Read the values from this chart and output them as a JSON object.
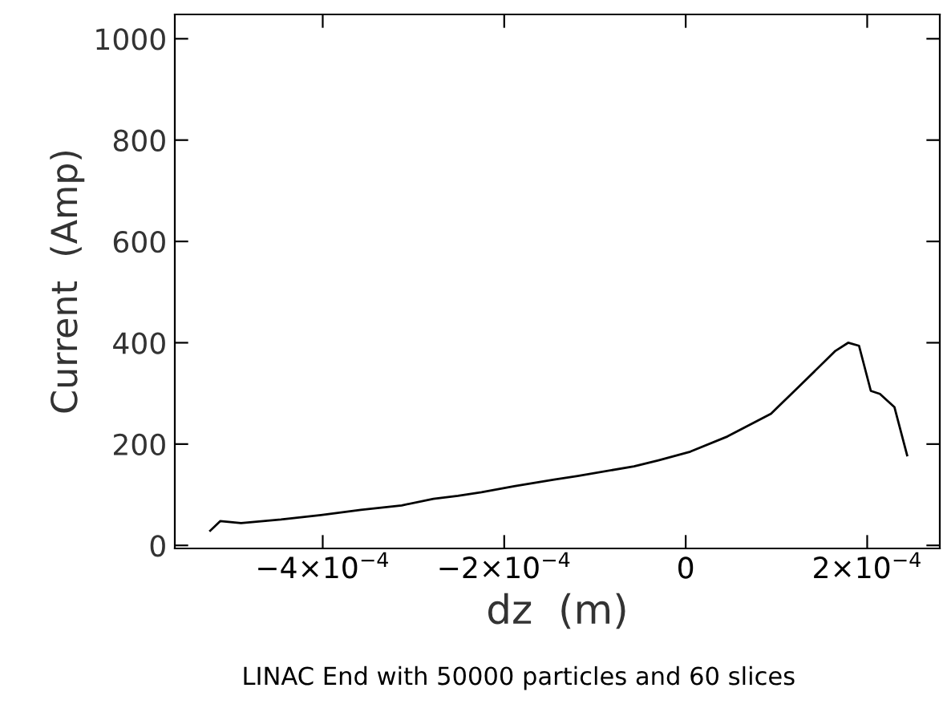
{
  "chart_data": {
    "type": "line",
    "xlabel": "dz  (m)",
    "ylabel": "Current  (Amp)",
    "annotations": [
      "LINAC End with 50000 particles and 60 slices"
    ],
    "series": [
      {
        "color": "#000000",
        "x": [
          -0.000524,
          -0.000513,
          -0.00049,
          -0.000446,
          -0.000402,
          -0.000358,
          -0.000313,
          -0.000278,
          -0.000251,
          -0.000225,
          -0.000189,
          -0.000145,
          -0.000119,
          -5.7e-05,
          -3e-05,
          5e-06,
          4.6e-05,
          9.4e-05,
          0.000124,
          0.000165,
          0.000179,
          0.000191,
          0.000204,
          0.000214,
          0.00023,
          0.000244
        ],
        "values": [
          29,
          48,
          44,
          51,
          60,
          70,
          79,
          92,
          98,
          105,
          117,
          130,
          137,
          156,
          168,
          185,
          215,
          260,
          312,
          384,
          400,
          394,
          305,
          299,
          273,
          178
        ]
      }
    ],
    "xlim": [
      -0.000563,
      0.00028
    ],
    "ylim": [
      -6,
      1048
    ],
    "xticks": [
      {
        "value": -0.0004,
        "label": "−4×10$^{−4}$"
      },
      {
        "value": -0.0002,
        "label": "−2×10$^{−4}$"
      },
      0,
      {
        "value": 0.0002,
        "label": "2×10$^{−4}$"
      }
    ],
    "yticks": [
      0,
      200,
      400,
      600,
      800,
      1000
    ],
    "grid": false,
    "legend": false,
    "marker": "none",
    "line_style": "solid"
  }
}
